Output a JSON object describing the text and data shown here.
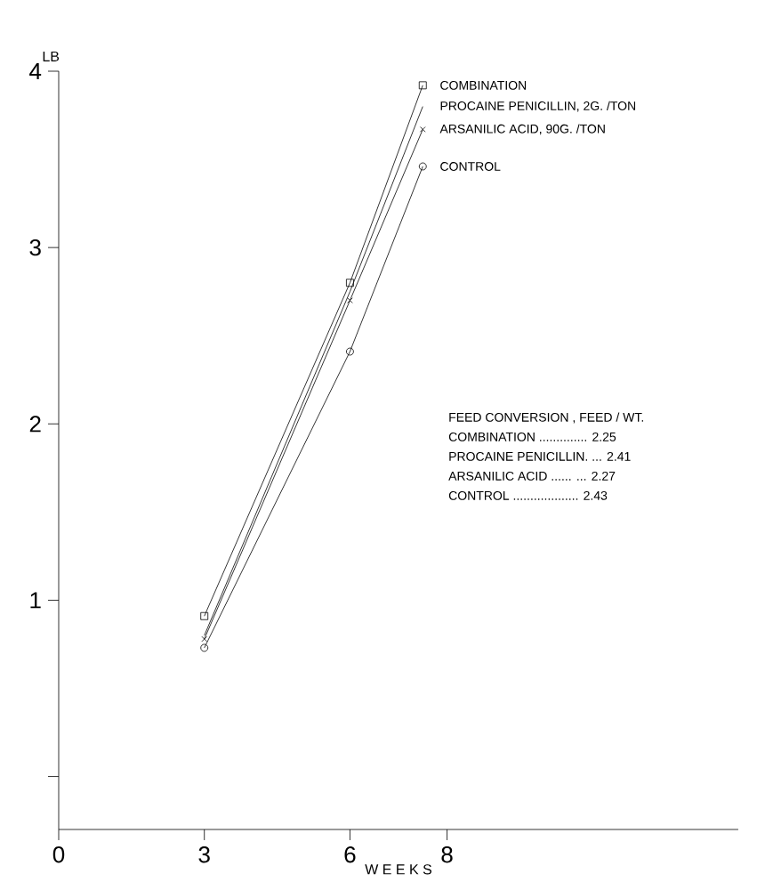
{
  "chart_data": {
    "type": "line",
    "xlabel": "W E E K S",
    "ylabel": "LB",
    "x": [
      3,
      6,
      7.5
    ],
    "series": [
      {
        "name": "COMBINATION",
        "color": "#000000",
        "marker": "square",
        "values": [
          0.91,
          2.8,
          3.92
        ]
      },
      {
        "name": "PROCAINE PENICILLIN, 2G. /TON",
        "color": "#000000",
        "marker": "none",
        "values": [
          0.8,
          2.75,
          3.8
        ]
      },
      {
        "name": "ARSANILIC ACID, 90G. /TON",
        "color": "#000000",
        "marker": "cross",
        "values": [
          0.78,
          2.7,
          3.67
        ]
      },
      {
        "name": "CONTROL",
        "color": "#000000",
        "marker": "circle",
        "values": [
          0.73,
          2.41,
          3.46
        ]
      }
    ],
    "xlim": [
      0,
      14
    ],
    "ylim": [
      -0.3,
      4
    ],
    "xticks": [
      0,
      3,
      6,
      8
    ],
    "yticks": [
      {
        "value": 0,
        "label": null
      },
      1,
      2,
      3,
      4
    ],
    "grid": false,
    "legend": false,
    "annotations": [
      "FEED CONVERSION , FEED / WT.",
      "COMBINATION .............. 2.25",
      "PROCAINE PENICILLIN. ... 2.41",
      "ARSANILIC ACID ...... ... 2.27",
      "CONTROL ................... 2.43"
    ]
  }
}
